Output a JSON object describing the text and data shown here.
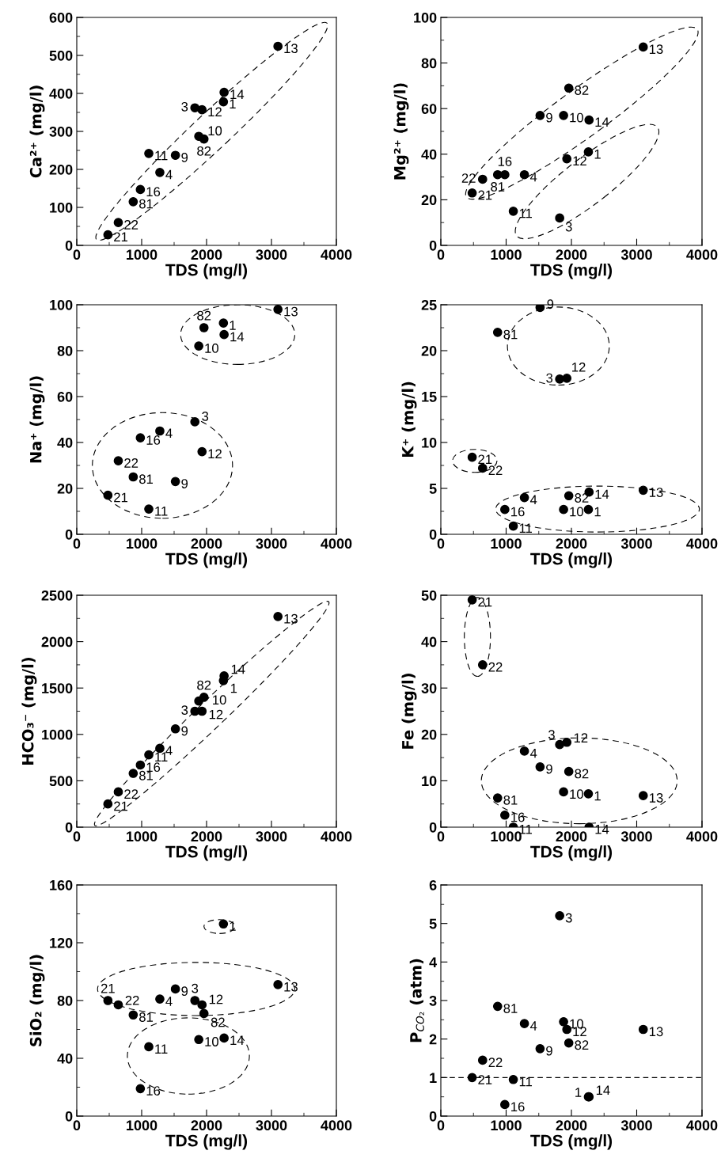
{
  "chart_data": [
    {
      "type": "scatter",
      "xlabel": "TDS (mg/l)",
      "ylabel": "Ca²⁺ (mg/l)",
      "xlim": [
        0,
        4000
      ],
      "xticks": [
        0,
        1000,
        2000,
        3000,
        4000
      ],
      "ylim": [
        0,
        600
      ],
      "yticks": [
        0,
        100,
        200,
        300,
        400,
        500,
        600
      ],
      "marker": "circle",
      "grid": false,
      "x": [
        480,
        640,
        870,
        980,
        1110,
        1280,
        1520,
        1820,
        1880,
        1930,
        1960,
        2260,
        2270,
        3100
      ],
      "series": [
        {
          "color": "#000000",
          "values": [
            28,
            60,
            115,
            147,
            242,
            192,
            237,
            362,
            287,
            357,
            280,
            378,
            403,
            524
          ]
        }
      ],
      "annotations": [
        {
          "text": "21",
          "x": 480,
          "y": 28
        },
        {
          "text": "22",
          "x": 640,
          "y": 60
        },
        {
          "text": "81",
          "x": 870,
          "y": 115
        },
        {
          "text": "16",
          "x": 980,
          "y": 147
        },
        {
          "text": "11",
          "x": 1110,
          "y": 242
        },
        {
          "text": "4",
          "x": 1280,
          "y": 192
        },
        {
          "text": "9",
          "x": 1520,
          "y": 237
        },
        {
          "text": "3",
          "x": 1820,
          "y": 362
        },
        {
          "text": "10",
          "x": 1880,
          "y": 287
        },
        {
          "text": "12",
          "x": 1930,
          "y": 357
        },
        {
          "text": "82",
          "x": 1960,
          "y": 280
        },
        {
          "text": "1",
          "x": 2260,
          "y": 378
        },
        {
          "text": "14",
          "x": 2270,
          "y": 403
        },
        {
          "text": "13",
          "x": 3100,
          "y": 524
        }
      ]
    },
    {
      "type": "scatter",
      "xlabel": "TDS (mg/l)",
      "ylabel": "Mg²⁺ (mg/l)",
      "xlim": [
        0,
        4000
      ],
      "xticks": [
        0,
        1000,
        2000,
        3000,
        4000
      ],
      "ylim": [
        0,
        100
      ],
      "yticks": [
        0,
        20,
        40,
        60,
        80,
        100
      ],
      "marker": "circle",
      "grid": false,
      "x": [
        480,
        640,
        870,
        980,
        1110,
        1280,
        1520,
        1820,
        1880,
        1930,
        1960,
        2260,
        2270,
        3100
      ],
      "series": [
        {
          "color": "#000000",
          "values": [
            23,
            29,
            31,
            31,
            15,
            31,
            57,
            12,
            57,
            38,
            69,
            41,
            55,
            87
          ]
        }
      ],
      "annotations": [
        {
          "text": "21",
          "x": 480,
          "y": 23
        },
        {
          "text": "22",
          "x": 640,
          "y": 29
        },
        {
          "text": "81",
          "x": 870,
          "y": 31
        },
        {
          "text": "16",
          "x": 980,
          "y": 31
        },
        {
          "text": "11",
          "x": 1110,
          "y": 15
        },
        {
          "text": "4",
          "x": 1280,
          "y": 31
        },
        {
          "text": "9",
          "x": 1520,
          "y": 57
        },
        {
          "text": "3",
          "x": 1820,
          "y": 12
        },
        {
          "text": "10",
          "x": 1880,
          "y": 57
        },
        {
          "text": "12",
          "x": 1930,
          "y": 38
        },
        {
          "text": "82",
          "x": 1960,
          "y": 69
        },
        {
          "text": "1",
          "x": 2260,
          "y": 41
        },
        {
          "text": "14",
          "x": 2270,
          "y": 55
        },
        {
          "text": "13",
          "x": 3100,
          "y": 87
        }
      ]
    },
    {
      "type": "scatter",
      "xlabel": "TDS (mg/l)",
      "ylabel": "Na⁺ (mg/l)",
      "xlim": [
        0,
        4000
      ],
      "xticks": [
        0,
        1000,
        2000,
        3000,
        4000
      ],
      "ylim": [
        0,
        100
      ],
      "yticks": [
        0,
        20,
        40,
        60,
        80,
        100
      ],
      "marker": "circle",
      "grid": false,
      "x": [
        480,
        640,
        870,
        980,
        1110,
        1280,
        1520,
        1820,
        1880,
        1930,
        1960,
        2260,
        2270,
        3100
      ],
      "series": [
        {
          "color": "#000000",
          "values": [
            17,
            32,
            25,
            42,
            11,
            45,
            23,
            49,
            82,
            36,
            90,
            92,
            87,
            98
          ]
        }
      ],
      "annotations": [
        {
          "text": "21",
          "x": 480,
          "y": 17
        },
        {
          "text": "22",
          "x": 640,
          "y": 32
        },
        {
          "text": "81",
          "x": 870,
          "y": 25
        },
        {
          "text": "16",
          "x": 980,
          "y": 42
        },
        {
          "text": "11",
          "x": 1110,
          "y": 11
        },
        {
          "text": "4",
          "x": 1280,
          "y": 45
        },
        {
          "text": "9",
          "x": 1520,
          "y": 23
        },
        {
          "text": "3",
          "x": 1820,
          "y": 49
        },
        {
          "text": "10",
          "x": 1880,
          "y": 82
        },
        {
          "text": "12",
          "x": 1930,
          "y": 36
        },
        {
          "text": "82",
          "x": 1960,
          "y": 90
        },
        {
          "text": "1",
          "x": 2260,
          "y": 92
        },
        {
          "text": "14",
          "x": 2270,
          "y": 87
        },
        {
          "text": "13",
          "x": 3100,
          "y": 98
        }
      ]
    },
    {
      "type": "scatter",
      "xlabel": "TDS (mg/l)",
      "ylabel": "K⁺ (mg/l)",
      "xlim": [
        0,
        4000
      ],
      "xticks": [
        0,
        1000,
        2000,
        3000,
        4000
      ],
      "ylim": [
        0,
        25
      ],
      "yticks": [
        0,
        5,
        10,
        15,
        20,
        25
      ],
      "marker": "circle",
      "grid": false,
      "x": [
        480,
        640,
        870,
        980,
        1110,
        1280,
        1520,
        1820,
        1880,
        1930,
        1960,
        2260,
        2270,
        3100
      ],
      "series": [
        {
          "color": "#000000",
          "values": [
            8.4,
            7.2,
            22,
            2.7,
            0.9,
            4,
            24.7,
            16.9,
            2.7,
            17,
            4.2,
            2.7,
            4.6,
            4.8
          ]
        }
      ],
      "annotations": [
        {
          "text": "21",
          "x": 480,
          "y": 8.4
        },
        {
          "text": "22",
          "x": 640,
          "y": 7.2
        },
        {
          "text": "81",
          "x": 870,
          "y": 22
        },
        {
          "text": "16",
          "x": 980,
          "y": 2.7
        },
        {
          "text": "11",
          "x": 1110,
          "y": 0.9
        },
        {
          "text": "4",
          "x": 1280,
          "y": 4
        },
        {
          "text": "9",
          "x": 1520,
          "y": 24.7
        },
        {
          "text": "3",
          "x": 1820,
          "y": 16.9
        },
        {
          "text": "10",
          "x": 1880,
          "y": 2.7
        },
        {
          "text": "12",
          "x": 1930,
          "y": 17
        },
        {
          "text": "82",
          "x": 1960,
          "y": 4.2
        },
        {
          "text": "1",
          "x": 2260,
          "y": 2.7
        },
        {
          "text": "14",
          "x": 2270,
          "y": 4.6
        },
        {
          "text": "13",
          "x": 3100,
          "y": 4.8
        }
      ]
    },
    {
      "type": "scatter",
      "xlabel": "TDS (mg/l)",
      "ylabel": "HCO₃⁻ (mg/l)",
      "xlim": [
        0,
        4000
      ],
      "xticks": [
        0,
        1000,
        2000,
        3000,
        4000
      ],
      "ylim": [
        0,
        2500
      ],
      "yticks": [
        0,
        500,
        1000,
        1500,
        2000,
        2500
      ],
      "marker": "circle",
      "grid": false,
      "x": [
        480,
        640,
        870,
        980,
        1110,
        1280,
        1520,
        1820,
        1880,
        1930,
        1960,
        2260,
        2270,
        3100
      ],
      "series": [
        {
          "color": "#000000",
          "values": [
            250,
            380,
            580,
            670,
            780,
            850,
            1060,
            1250,
            1360,
            1250,
            1400,
            1580,
            1630,
            2270
          ]
        }
      ],
      "annotations": [
        {
          "text": "21",
          "x": 480,
          "y": 250
        },
        {
          "text": "22",
          "x": 640,
          "y": 380
        },
        {
          "text": "81",
          "x": 870,
          "y": 580
        },
        {
          "text": "16",
          "x": 980,
          "y": 670
        },
        {
          "text": "11",
          "x": 1110,
          "y": 780
        },
        {
          "text": "4",
          "x": 1280,
          "y": 850
        },
        {
          "text": "9",
          "x": 1520,
          "y": 1060
        },
        {
          "text": "3",
          "x": 1820,
          "y": 1250
        },
        {
          "text": "10",
          "x": 1880,
          "y": 1360
        },
        {
          "text": "12",
          "x": 1930,
          "y": 1250
        },
        {
          "text": "82",
          "x": 1960,
          "y": 1400
        },
        {
          "text": "1",
          "x": 2260,
          "y": 1580
        },
        {
          "text": "14",
          "x": 2270,
          "y": 1630
        },
        {
          "text": "13",
          "x": 3100,
          "y": 2270
        }
      ]
    },
    {
      "type": "scatter",
      "xlabel": "TDS (mg/l)",
      "ylabel": "Fe (mg/l)",
      "xlim": [
        0,
        4000
      ],
      "xticks": [
        0,
        1000,
        2000,
        3000,
        4000
      ],
      "ylim": [
        0,
        50
      ],
      "yticks": [
        0,
        10,
        20,
        30,
        40,
        50
      ],
      "marker": "circle",
      "grid": false,
      "x": [
        480,
        640,
        870,
        980,
        1110,
        1280,
        1520,
        1820,
        1880,
        1930,
        1960,
        2260,
        2270,
        3100
      ],
      "series": [
        {
          "color": "#000000",
          "values": [
            49,
            35,
            6.3,
            2.6,
            0,
            16.4,
            13,
            17.8,
            7.6,
            18.3,
            12,
            7.2,
            0,
            6.8
          ]
        }
      ],
      "annotations": [
        {
          "text": "21",
          "x": 480,
          "y": 49
        },
        {
          "text": "22",
          "x": 640,
          "y": 35
        },
        {
          "text": "81",
          "x": 870,
          "y": 6.3
        },
        {
          "text": "16",
          "x": 980,
          "y": 2.6
        },
        {
          "text": "11",
          "x": 1110,
          "y": 0
        },
        {
          "text": "4",
          "x": 1280,
          "y": 16.4
        },
        {
          "text": "9",
          "x": 1520,
          "y": 13
        },
        {
          "text": "3",
          "x": 1820,
          "y": 17.8
        },
        {
          "text": "10",
          "x": 1880,
          "y": 7.6
        },
        {
          "text": "12",
          "x": 1930,
          "y": 18.3
        },
        {
          "text": "82",
          "x": 1960,
          "y": 12
        },
        {
          "text": "1",
          "x": 2260,
          "y": 7.2
        },
        {
          "text": "14",
          "x": 2270,
          "y": 0
        },
        {
          "text": "13",
          "x": 3100,
          "y": 6.8
        }
      ]
    },
    {
      "type": "scatter",
      "xlabel": "TDS (mg/l)",
      "ylabel": "SiO₂ (mg/l)",
      "xlim": [
        0,
        4000
      ],
      "xticks": [
        0,
        1000,
        2000,
        3000,
        4000
      ],
      "ylim": [
        0,
        160
      ],
      "yticks": [
        0,
        40,
        80,
        120,
        160
      ],
      "marker": "circle",
      "grid": false,
      "x": [
        480,
        640,
        870,
        980,
        1110,
        1280,
        1520,
        1820,
        1880,
        1930,
        1960,
        2260,
        2270,
        3100
      ],
      "series": [
        {
          "color": "#000000",
          "values": [
            80,
            77,
            70,
            19,
            48,
            81,
            88,
            80,
            53,
            77,
            71,
            133,
            54,
            91
          ]
        }
      ],
      "annotations": [
        {
          "text": "21",
          "x": 480,
          "y": 80
        },
        {
          "text": "22",
          "x": 640,
          "y": 77
        },
        {
          "text": "81",
          "x": 870,
          "y": 70
        },
        {
          "text": "16",
          "x": 980,
          "y": 19
        },
        {
          "text": "11",
          "x": 1110,
          "y": 48
        },
        {
          "text": "4",
          "x": 1280,
          "y": 81
        },
        {
          "text": "9",
          "x": 1520,
          "y": 88
        },
        {
          "text": "3",
          "x": 1820,
          "y": 80
        },
        {
          "text": "10",
          "x": 1880,
          "y": 53
        },
        {
          "text": "12",
          "x": 1930,
          "y": 77
        },
        {
          "text": "82",
          "x": 1960,
          "y": 71
        },
        {
          "text": "1",
          "x": 2260,
          "y": 133
        },
        {
          "text": "14",
          "x": 2270,
          "y": 54
        },
        {
          "text": "13",
          "x": 3100,
          "y": 91
        }
      ]
    },
    {
      "type": "scatter",
      "xlabel": "TDS (mg/l)",
      "ylabel": "P$_{CO₂}$ (atm)",
      "xlim": [
        0,
        4000
      ],
      "xticks": [
        0,
        1000,
        2000,
        3000,
        4000
      ],
      "ylim": [
        0,
        6
      ],
      "yticks": [
        0,
        1,
        2,
        3,
        4,
        5,
        6
      ],
      "marker": "circle",
      "grid": false,
      "x": [
        480,
        640,
        870,
        980,
        1110,
        1280,
        1520,
        1820,
        1880,
        1930,
        1960,
        2260,
        2270,
        3100
      ],
      "series": [
        {
          "color": "#000000",
          "values": [
            1.0,
            1.45,
            2.85,
            0.3,
            0.95,
            2.4,
            1.75,
            5.2,
            2.45,
            2.25,
            1.9,
            0.5,
            0.5,
            2.25
          ]
        }
      ],
      "ref_lines": [
        {
          "axis": "y",
          "value": 1,
          "line_style": "dashed",
          "color": "#000000"
        }
      ],
      "annotations": [
        {
          "text": "21",
          "x": 480,
          "y": 1.0
        },
        {
          "text": "22",
          "x": 640,
          "y": 1.45
        },
        {
          "text": "81",
          "x": 870,
          "y": 2.85
        },
        {
          "text": "16",
          "x": 980,
          "y": 0.3
        },
        {
          "text": "11",
          "x": 1110,
          "y": 0.95
        },
        {
          "text": "4",
          "x": 1280,
          "y": 2.4
        },
        {
          "text": "9",
          "x": 1520,
          "y": 1.75
        },
        {
          "text": "3",
          "x": 1820,
          "y": 5.2
        },
        {
          "text": "10",
          "x": 1880,
          "y": 2.45
        },
        {
          "text": "12",
          "x": 1930,
          "y": 2.25
        },
        {
          "text": "82",
          "x": 1960,
          "y": 1.9
        },
        {
          "text": "1",
          "x": 2260,
          "y": 0.5
        },
        {
          "text": "14",
          "x": 2270,
          "y": 0.5
        },
        {
          "text": "13",
          "x": 3100,
          "y": 2.25
        }
      ]
    }
  ]
}
